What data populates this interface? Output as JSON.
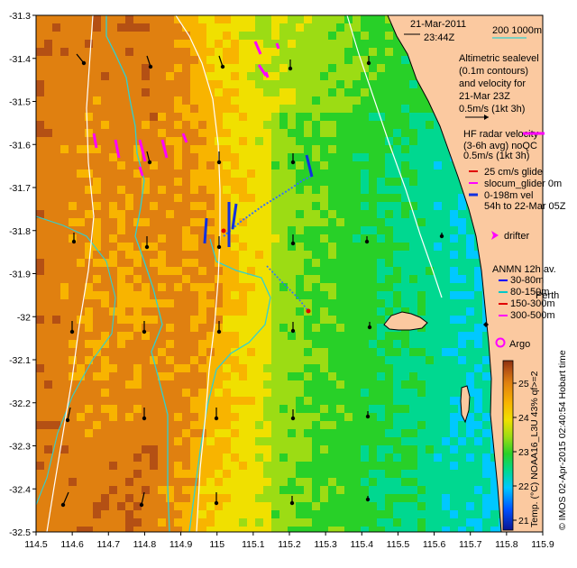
{
  "map": {
    "date": "21-Mar-2011",
    "time": "23:44Z",
    "scale_label": "200  1000m",
    "lat_ticks": [
      "-31.3",
      "-31.4",
      "-31.5",
      "-31.6",
      "-31.7",
      "-31.8",
      "-31.9",
      "-32",
      "-32.1",
      "-32.2",
      "-32.3",
      "-32.4",
      "-32.5"
    ],
    "lon_ticks": [
      "114.5",
      "114.6",
      "114.7",
      "114.8",
      "114.9",
      "115",
      "115.1",
      "115.2",
      "115.3",
      "115.4",
      "115.5",
      "115.6",
      "115.7",
      "115.8",
      "115.9"
    ],
    "altimetry_legend": [
      "Altimetric sealevel",
      "(0.1m contours)",
      "and velocity for",
      "21-Mar 23Z",
      "0.5m/s (1kt 3h)"
    ],
    "hf_radar_legend": [
      "HF radar velocity",
      "(3-6h avg) noQC",
      "0.5m/s (1kt 3h)"
    ],
    "glider_legend": [
      "25 cm/s glide",
      "slocum_glider 0m",
      "0-198m vel",
      "54h to 22-Mar 05Z"
    ],
    "drifter_label": "drifter",
    "anmn_title": "ANMN 12h av.",
    "anmn_items": [
      "30-80m",
      "80-150m",
      "150-300m",
      "300-500m"
    ],
    "anmn_colors": [
      "#0000ff",
      "#00c8c8",
      "#e00000",
      "#ff00ff"
    ],
    "place_label": "Perth",
    "argo_label": "Argo",
    "colorbar": {
      "ticks": [
        "21",
        "22",
        "23",
        "24",
        "25"
      ],
      "label": "Temp. (°C) NOAA16_L3U 43% qf>=2",
      "colors": [
        "#0a1490",
        "#0050ff",
        "#00c8ff",
        "#00d890",
        "#28d028",
        "#9cdc14",
        "#f0e000",
        "#f8b400",
        "#e08010",
        "#b45014",
        "#8c3010"
      ]
    },
    "credit": "© IMOS 02-Apr-2015 02:40:54 Hobart time"
  }
}
